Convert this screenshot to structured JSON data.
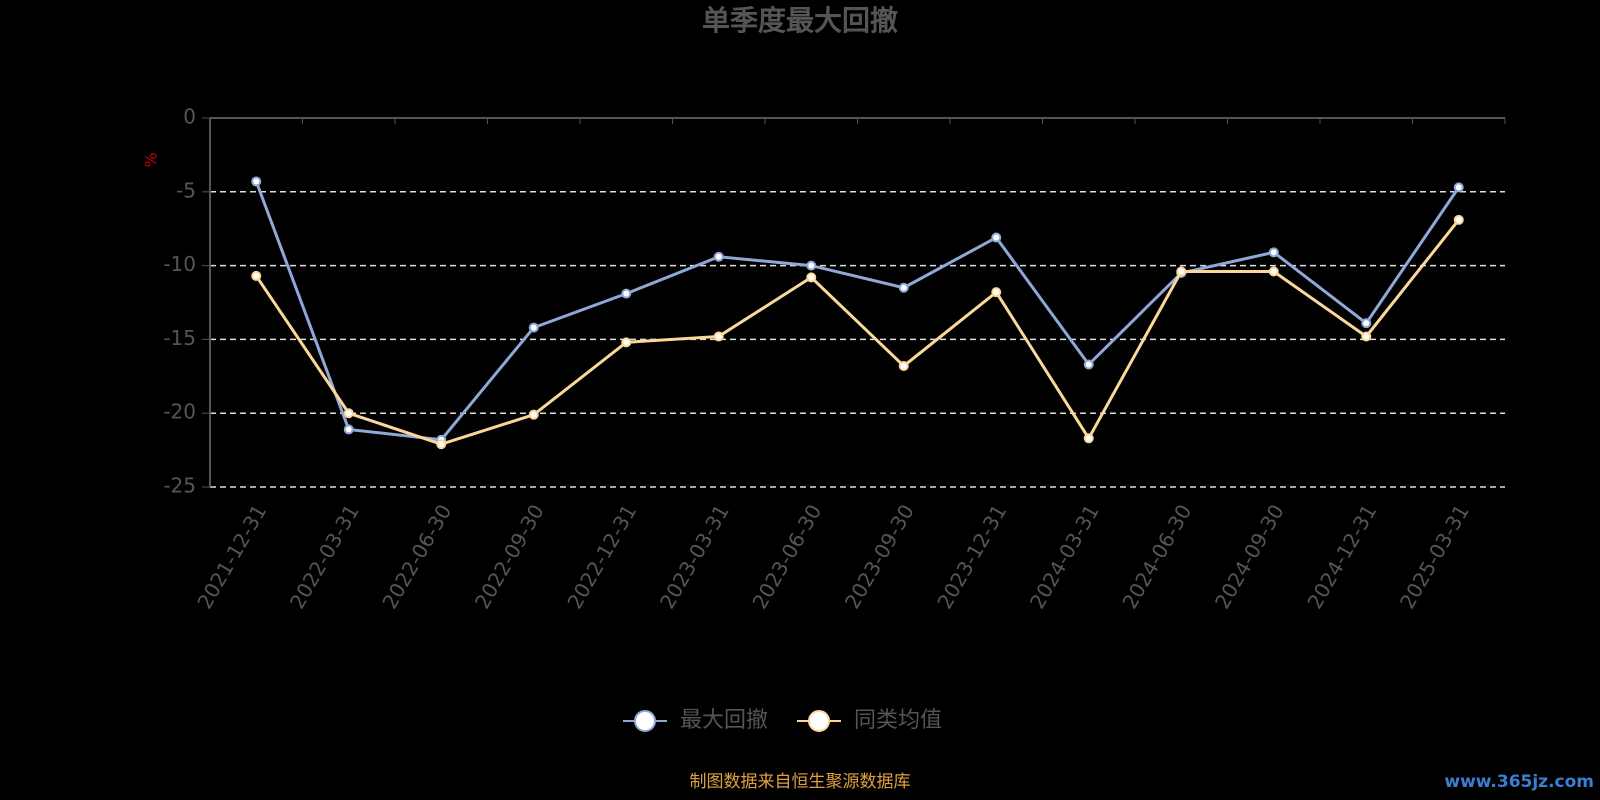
{
  "chart_data": {
    "type": "line",
    "title": "单季度最大回撤",
    "y_unit": "%",
    "categories": [
      "2021-12-31",
      "2022-03-31",
      "2022-06-30",
      "2022-09-30",
      "2022-12-31",
      "2023-03-31",
      "2023-06-30",
      "2023-09-30",
      "2023-12-31",
      "2024-03-31",
      "2024-06-30",
      "2024-09-30",
      "2024-12-31",
      "2025-03-31"
    ],
    "series": [
      {
        "name": "最大回撤",
        "color": "#8fa8d8",
        "values": [
          -4.3,
          -21.1,
          -21.8,
          -14.2,
          -11.9,
          -9.4,
          -10.0,
          -11.5,
          -8.1,
          -16.7,
          -10.5,
          -9.1,
          -13.9,
          -4.7
        ]
      },
      {
        "name": "同类均值",
        "color": "#fbd89a",
        "values": [
          -10.7,
          -20.0,
          -22.1,
          -20.1,
          -15.2,
          -14.8,
          -10.8,
          -16.8,
          -11.8,
          -21.7,
          -10.4,
          -10.4,
          -14.8,
          -6.9
        ]
      }
    ],
    "ylim": [
      -25,
      0
    ],
    "yticks": [
      0,
      -5,
      -10,
      -15,
      -20,
      -25
    ],
    "grid": true,
    "source": "制图数据来自恒生聚源数据库",
    "watermark": "www.365jz.com"
  }
}
